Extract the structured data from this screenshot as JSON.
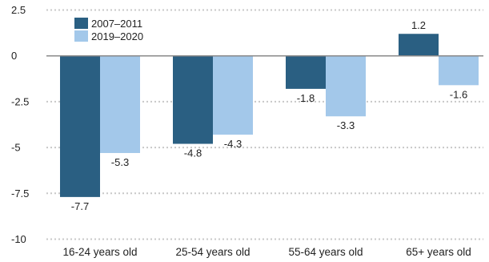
{
  "chart_data": {
    "type": "bar",
    "categories": [
      "16-24 years old",
      "25-54 years old",
      "55-64 years old",
      "65+ years old"
    ],
    "series": [
      {
        "name": "2007–2011",
        "values": [
          -7.7,
          -4.8,
          -1.8,
          1.2
        ],
        "labels": [
          "-7.7",
          "-4.8",
          "-1.8",
          "1.2"
        ],
        "color": "#2a5f82"
      },
      {
        "name": "2019–2020",
        "values": [
          -5.3,
          -4.3,
          -3.3,
          -1.6
        ],
        "labels": [
          "-5.3",
          "-4.3",
          "-3.3",
          "-1.6"
        ],
        "color": "#a3c8ea"
      }
    ],
    "yticks": [
      2.5,
      0,
      -2.5,
      -5,
      -7.5,
      -10
    ],
    "ytick_labels": [
      "2.5",
      "0",
      "-2.5",
      "-5",
      "-7.5",
      "-10"
    ],
    "ylim": [
      -10,
      2.5
    ],
    "grid": true,
    "legend": "top-left",
    "title": "",
    "xlabel": "",
    "ylabel": ""
  }
}
